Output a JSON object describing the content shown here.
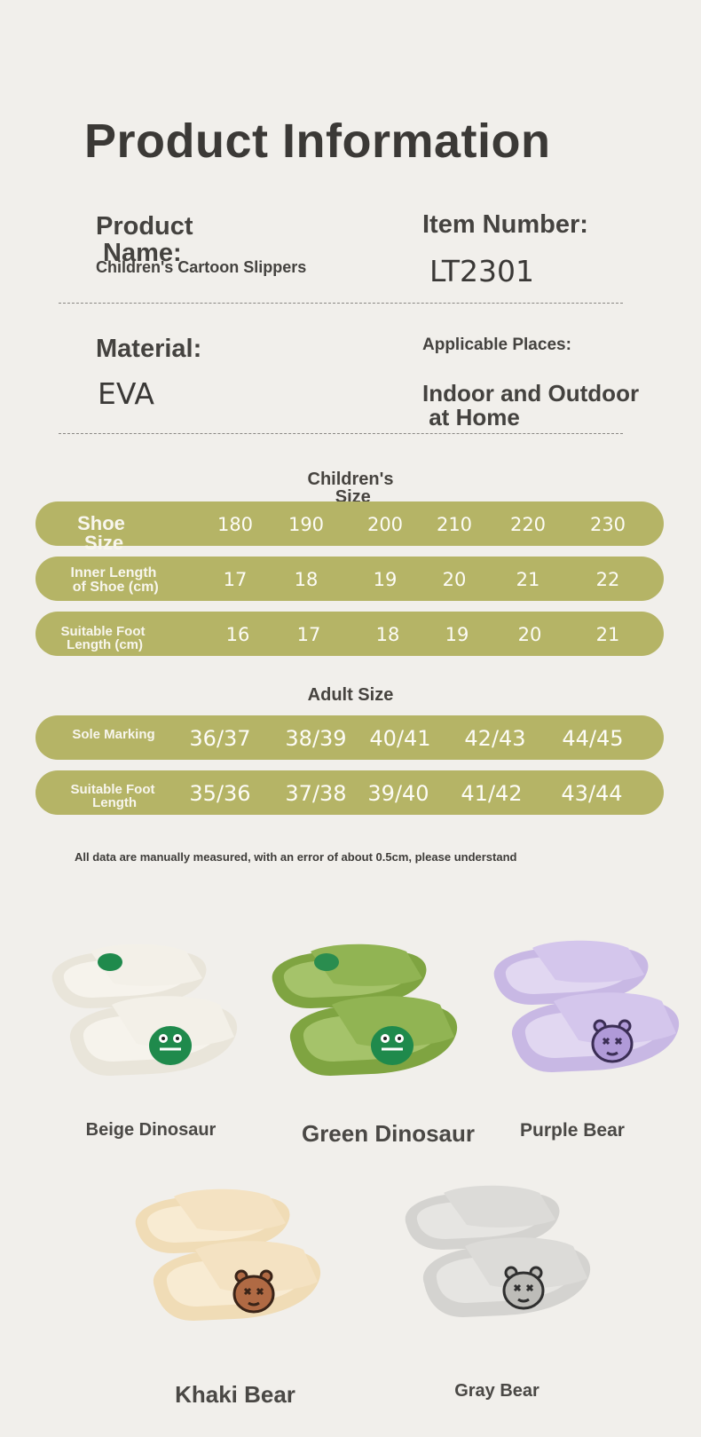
{
  "title": "Product Information",
  "info": {
    "product_name_label": "Product\n Name:",
    "product_name_value": "Children's Cartoon Slippers",
    "item_number_label": "Item Number:",
    "item_number_value": "LT2301",
    "material_label": "Material:",
    "material_value": "EVA",
    "places_label": "Applicable Places:",
    "places_value": "Indoor and Outdoor\n at Home"
  },
  "children": {
    "heading": "Children's\n Size",
    "rows": [
      {
        "label": "Shoe\n Size",
        "values": [
          "180",
          "190",
          "200",
          "210",
          "220",
          "230"
        ]
      },
      {
        "label": "Inner Length\n of Shoe (cm)",
        "values": [
          "17",
          "18",
          "19",
          "20",
          "21",
          "22"
        ]
      },
      {
        "label": "Suitable Foot\n Length (cm)",
        "values": [
          "16",
          "17",
          "18",
          "19",
          "20",
          "21"
        ]
      }
    ]
  },
  "adult": {
    "heading": "Adult Size",
    "rows": [
      {
        "label": "Sole Marking",
        "values": [
          "36/37",
          "38/39",
          "40/41",
          "42/43",
          "44/45"
        ]
      },
      {
        "label": "Suitable Foot\n Length",
        "values": [
          "35/36",
          "37/38",
          "39/40",
          "41/42",
          "43/44"
        ]
      }
    ]
  },
  "note": "All data are manually measured, with an error of about 0.5cm, please understand",
  "colors": {
    "row_bg": "#b5b466",
    "beige": "#eeebe2",
    "green": "#8cae4a",
    "purple": "#cdbfe6",
    "khaki": "#f1ddba",
    "gray": "#d8d7d4"
  },
  "products": [
    {
      "name": "Beige Dinosaur",
      "mascot": "dinosaur-icon"
    },
    {
      "name": "Green Dinosaur",
      "mascot": "dinosaur-icon"
    },
    {
      "name": "Purple Bear",
      "mascot": "bear-icon"
    },
    {
      "name": "Khaki Bear",
      "mascot": "bear-icon"
    },
    {
      "name": "Gray Bear",
      "mascot": "bear-icon"
    }
  ]
}
